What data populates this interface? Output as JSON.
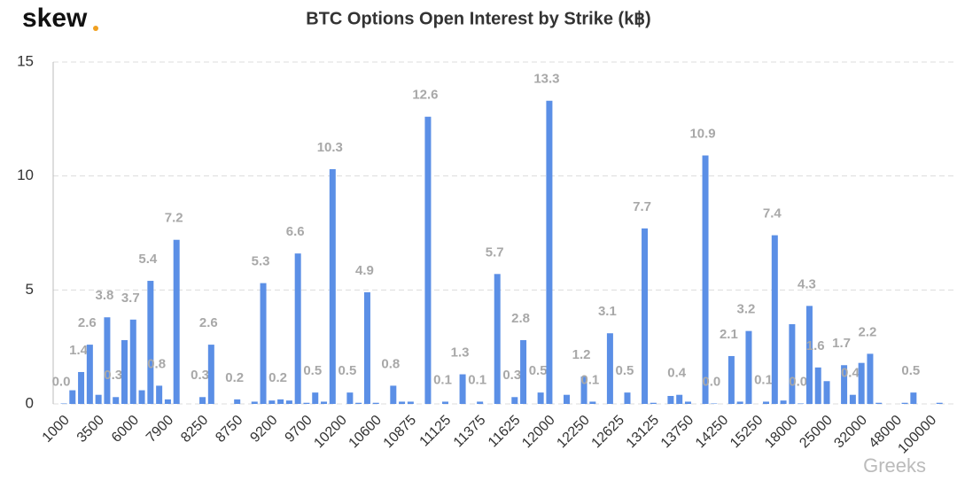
{
  "brand": "skew",
  "watermark": "Greeks",
  "chart_data": {
    "type": "bar",
    "title": "BTC Options Open Interest by Strike (k฿)",
    "color": "#5b8fe6",
    "grid": true,
    "ylim": [
      0,
      15
    ],
    "yticks": [
      0,
      5,
      10,
      15
    ],
    "categories": [
      "1000",
      null,
      null,
      null,
      "3500",
      null,
      null,
      null,
      "6000",
      null,
      null,
      null,
      "7900",
      null,
      null,
      null,
      "8250",
      null,
      null,
      null,
      "8750",
      null,
      null,
      null,
      "9200",
      null,
      null,
      null,
      "9700",
      null,
      null,
      null,
      "10200",
      null,
      null,
      null,
      "10600",
      null,
      null,
      null,
      "10875",
      null,
      null,
      null,
      "11125",
      null,
      null,
      null,
      "11375",
      null,
      null,
      null,
      "11625",
      null,
      null,
      null,
      "12000",
      null,
      null,
      null,
      "12250",
      null,
      null,
      null,
      "12625",
      null,
      null,
      null,
      "13125",
      null,
      null,
      null,
      "13750",
      null,
      null,
      null,
      "14250",
      null,
      null,
      null,
      "15250",
      null,
      null,
      null,
      "18000",
      null,
      null,
      null,
      "25000",
      null,
      null,
      null,
      "32000",
      null,
      null,
      null,
      "48000",
      null,
      null,
      null,
      "100000",
      null
    ],
    "values": [
      0.02,
      0.6,
      1.4,
      2.6,
      0.4,
      3.8,
      0.3,
      2.8,
      3.7,
      0.6,
      5.4,
      0.8,
      0.2,
      7.2,
      0,
      0,
      0.3,
      2.6,
      0,
      0,
      0.2,
      0,
      0.1,
      5.3,
      0.15,
      0.2,
      0.15,
      6.6,
      0.05,
      0.5,
      0.1,
      10.3,
      0,
      0.5,
      0.05,
      4.9,
      0.05,
      0,
      0.8,
      0.1,
      0.1,
      0,
      12.6,
      0,
      0.1,
      0,
      1.3,
      0,
      0.1,
      0,
      5.7,
      0,
      0.3,
      2.8,
      0,
      0.5,
      13.3,
      0,
      0.4,
      0,
      1.2,
      0.1,
      0,
      3.1,
      0,
      0.5,
      0,
      7.7,
      0.05,
      0,
      0.35,
      0.4,
      0.1,
      0,
      10.9,
      0.02,
      0,
      2.1,
      0.1,
      3.2,
      0,
      0.1,
      7.4,
      0.15,
      3.5,
      0.02,
      4.3,
      1.6,
      1.0,
      0,
      1.7,
      0.4,
      1.8,
      2.2,
      0.05,
      0,
      0,
      0.05,
      0.5,
      0,
      0,
      0.05
    ],
    "value_labels": [
      "0.0",
      null,
      "1.4",
      "2.6",
      null,
      "3.8",
      "0.3",
      null,
      "3.7",
      null,
      "5.4",
      "0.8",
      null,
      "7.2",
      null,
      null,
      "0.3",
      "2.6",
      null,
      null,
      "0.2",
      null,
      null,
      "5.3",
      null,
      "0.2",
      null,
      "6.6",
      null,
      "0.5",
      null,
      "10.3",
      null,
      "0.5",
      null,
      "4.9",
      null,
      null,
      "0.8",
      null,
      null,
      null,
      "12.6",
      null,
      "0.1",
      null,
      "1.3",
      null,
      "0.1",
      null,
      "5.7",
      null,
      "0.3",
      "2.8",
      null,
      "0.5",
      "13.3",
      null,
      null,
      null,
      "1.2",
      "0.1",
      null,
      "3.1",
      null,
      "0.5",
      null,
      "7.7",
      null,
      null,
      null,
      "0.4",
      null,
      null,
      "10.9",
      "0.0",
      null,
      "2.1",
      null,
      "3.2",
      null,
      "0.1",
      "7.4",
      null,
      null,
      "0.0",
      "4.3",
      "1.6",
      null,
      null,
      "1.7",
      "0.4",
      null,
      "2.2",
      null,
      null,
      null,
      null,
      "0.5",
      null,
      null,
      null
    ]
  }
}
